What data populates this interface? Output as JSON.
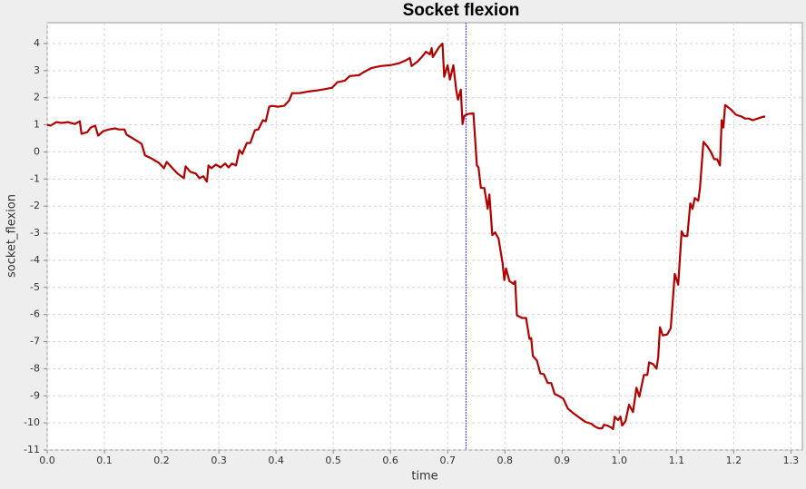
{
  "chart_data": {
    "type": "line",
    "title": "Socket flexion",
    "x_label": "time",
    "y_label": "socket_flexion",
    "color": "#b00000",
    "marker_x": 0.732,
    "marker_color": "#3333ff",
    "grid": true,
    "xlim": [
      0,
      1.32
    ],
    "ylim": [
      -11,
      4.77
    ],
    "xticks": [
      {
        "value": 0,
        "label": "0.0"
      },
      0.1,
      0.2,
      0.3,
      0.4,
      0.5,
      0.6,
      0.7,
      0.8,
      0.9,
      {
        "value": 1,
        "label": "1.0"
      },
      1.1,
      1.2,
      1.3
    ],
    "yticks": [
      4,
      3,
      2,
      1,
      0,
      -1,
      -2,
      -3,
      -4,
      -5,
      -6,
      -7,
      -8,
      -9,
      -10,
      -11
    ],
    "x": [
      0.0,
      0.006,
      0.016,
      0.025,
      0.036,
      0.048,
      0.057,
      0.06,
      0.07,
      0.076,
      0.084,
      0.089,
      0.098,
      0.108,
      0.119,
      0.125,
      0.135,
      0.139,
      0.155,
      0.165,
      0.171,
      0.181,
      0.187,
      0.195,
      0.204,
      0.209,
      0.219,
      0.228,
      0.239,
      0.242,
      0.25,
      0.26,
      0.266,
      0.273,
      0.279,
      0.282,
      0.287,
      0.295,
      0.303,
      0.311,
      0.317,
      0.323,
      0.33,
      0.336,
      0.341,
      0.349,
      0.355,
      0.363,
      0.369,
      0.377,
      0.382,
      0.388,
      0.393,
      0.403,
      0.414,
      0.423,
      0.428,
      0.441,
      0.456,
      0.472,
      0.488,
      0.498,
      0.507,
      0.52,
      0.529,
      0.545,
      0.552,
      0.567,
      0.583,
      0.599,
      0.615,
      0.626,
      0.634,
      0.637,
      0.647,
      0.656,
      0.662,
      0.669,
      0.672,
      0.674,
      0.678,
      0.685,
      0.691,
      0.694,
      0.697,
      0.7,
      0.704,
      0.71,
      0.715,
      0.718,
      0.723,
      0.726,
      0.729,
      0.735,
      0.745,
      0.751,
      0.754,
      0.758,
      0.764,
      0.77,
      0.773,
      0.778,
      0.783,
      0.789,
      0.796,
      0.799,
      0.802,
      0.808,
      0.815,
      0.818,
      0.821,
      0.83,
      0.837,
      0.843,
      0.846,
      0.849,
      0.856,
      0.862,
      0.868,
      0.875,
      0.881,
      0.887,
      0.894,
      0.902,
      0.91,
      0.919,
      0.932,
      0.941,
      0.951,
      0.957,
      0.964,
      0.97,
      0.973,
      0.979,
      0.986,
      0.989,
      0.992,
      0.998,
      1.002,
      1.005,
      1.011,
      1.017,
      1.024,
      1.03,
      1.035,
      1.043,
      1.049,
      1.052,
      1.059,
      1.065,
      1.068,
      1.071,
      1.076,
      1.084,
      1.09,
      1.097,
      1.103,
      1.109,
      1.113,
      1.119,
      1.124,
      1.128,
      1.132,
      1.138,
      1.141,
      1.147,
      1.154,
      1.16,
      1.166,
      1.171,
      1.176,
      1.179,
      1.182,
      1.185,
      1.195,
      1.204,
      1.214,
      1.22,
      1.227,
      1.233,
      1.242,
      1.252,
      1.255
    ],
    "values": [
      1.0,
      0.97,
      1.1,
      1.07,
      1.1,
      1.03,
      1.13,
      0.67,
      0.73,
      0.9,
      0.97,
      0.6,
      0.77,
      0.83,
      0.87,
      0.83,
      0.83,
      0.63,
      0.43,
      0.3,
      -0.13,
      -0.23,
      -0.3,
      -0.4,
      -0.6,
      -0.37,
      -0.6,
      -0.8,
      -0.97,
      -0.53,
      -0.73,
      -0.8,
      -0.97,
      -0.9,
      -1.1,
      -0.5,
      -0.6,
      -0.47,
      -0.57,
      -0.43,
      -0.57,
      -0.43,
      -0.5,
      0.07,
      -0.07,
      0.33,
      0.33,
      0.8,
      0.83,
      1.17,
      1.13,
      1.67,
      1.7,
      1.67,
      1.7,
      1.9,
      2.17,
      2.17,
      2.23,
      2.27,
      2.33,
      2.37,
      2.57,
      2.63,
      2.8,
      2.83,
      2.93,
      3.1,
      3.17,
      3.2,
      3.27,
      3.37,
      3.47,
      3.17,
      3.33,
      3.53,
      3.7,
      3.6,
      3.83,
      3.5,
      3.63,
      3.87,
      4.0,
      2.77,
      3.0,
      3.2,
      2.67,
      3.2,
      2.27,
      1.93,
      2.3,
      1.03,
      1.33,
      1.4,
      1.43,
      -0.5,
      -0.57,
      -1.33,
      -1.33,
      -2.1,
      -1.57,
      -3.07,
      -2.97,
      -3.2,
      -4.1,
      -4.73,
      -4.3,
      -4.77,
      -4.87,
      -4.77,
      -6.03,
      -6.13,
      -6.13,
      -6.9,
      -6.87,
      -7.53,
      -7.7,
      -8.17,
      -8.2,
      -8.53,
      -8.53,
      -8.93,
      -9.0,
      -9.1,
      -9.47,
      -9.63,
      -9.83,
      -9.97,
      -10.03,
      -10.13,
      -10.2,
      -10.2,
      -10.07,
      -10.1,
      -10.17,
      -10.23,
      -9.77,
      -9.9,
      -9.77,
      -10.1,
      -9.93,
      -9.33,
      -9.6,
      -8.7,
      -9.03,
      -8.23,
      -8.23,
      -7.77,
      -7.83,
      -8.0,
      -7.57,
      -6.47,
      -6.77,
      -6.73,
      -6.5,
      -4.5,
      -4.9,
      -2.93,
      -3.1,
      -3.1,
      -1.9,
      -2.1,
      -1.7,
      -1.8,
      -1.33,
      0.37,
      0.2,
      0.0,
      -0.27,
      -0.27,
      -0.5,
      1.17,
      0.9,
      1.73,
      1.57,
      1.37,
      1.3,
      1.23,
      1.23,
      1.17,
      1.23,
      1.3,
      1.3
    ]
  }
}
